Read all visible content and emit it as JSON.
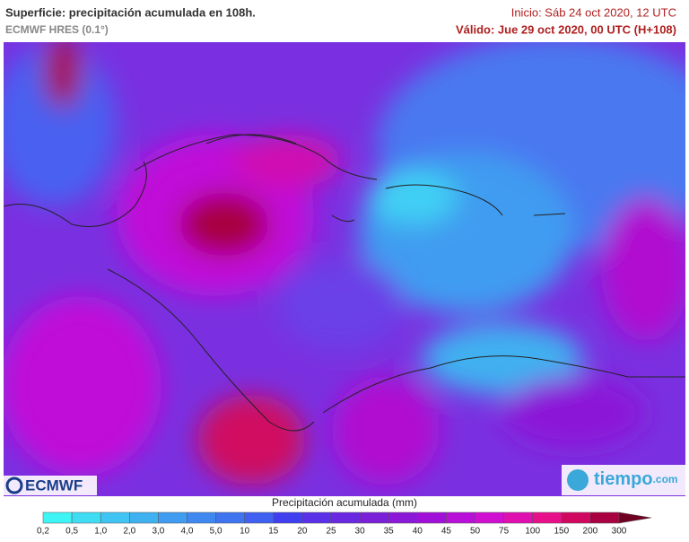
{
  "header": {
    "title": "Superficie: precipitación acumulada en 108h.",
    "model": "ECMWF HRES (0.1°)",
    "init": "Inicio: Sáb 24 oct 2020, 12 UTC",
    "valid": "Válido: Jue 29 oct 2020, 00 UTC (H+108)"
  },
  "logos": {
    "left": "ECMWF",
    "right": "tiempo",
    "right_suffix": ".com"
  },
  "legend": {
    "title": "Precipitación acumulada (mm)",
    "labels": [
      "0,2",
      "0,5",
      "1,0",
      "2,0",
      "3,0",
      "4,0",
      "5,0",
      "10",
      "15",
      "20",
      "25",
      "30",
      "35",
      "40",
      "45",
      "50",
      "75",
      "100",
      "150",
      "200",
      "300"
    ],
    "colors": [
      "#3ff4f4",
      "#3fdcf4",
      "#3fc4f4",
      "#3fb0f0",
      "#3f9cf0",
      "#3f88f0",
      "#3f74f0",
      "#3f60f0",
      "#3f3ff0",
      "#5a30e8",
      "#6a28e0",
      "#7a20d8",
      "#8c18d8",
      "#a010d8",
      "#b810d8",
      "#d010d0",
      "#e010b0",
      "#e8108a",
      "#d00860",
      "#a80040"
    ],
    "overflow_color": "#700020"
  }
}
